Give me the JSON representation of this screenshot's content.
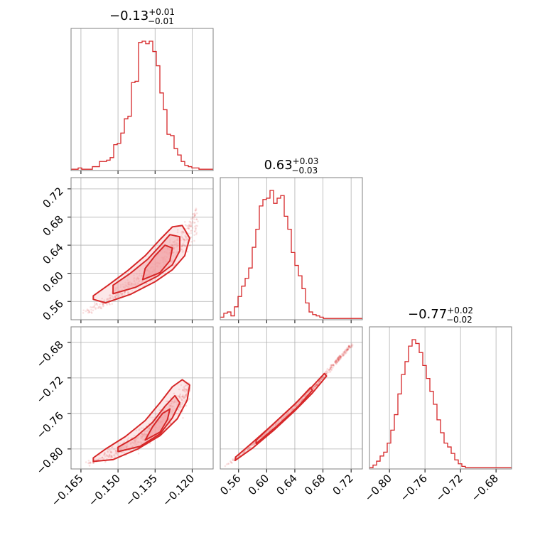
{
  "colors": {
    "series": "#d62728",
    "fill": "#f2a3a6",
    "grid": "#b0b0b0",
    "frame": "#808080"
  },
  "chart_data": {
    "type": "corner",
    "grid": true,
    "parameters": [
      {
        "median": "−0.13",
        "plus": "+0.01",
        "minus": "−0.01",
        "range": [
          -0.169,
          -0.1115
        ],
        "ticks": [
          -0.165,
          -0.15,
          -0.135,
          -0.12
        ],
        "tick_labels": [
          "−0.165",
          "−0.150",
          "−0.135",
          "−0.120"
        ]
      },
      {
        "median": "0.63",
        "plus": "+0.03",
        "minus": "−0.03",
        "range": [
          0.534,
          0.736
        ],
        "ticks": [
          0.56,
          0.6,
          0.64,
          0.68,
          0.72
        ],
        "tick_labels": [
          "0.56",
          "0.60",
          "0.64",
          "0.68",
          "0.72"
        ]
      },
      {
        "median": "−0.77",
        "plus": "+0.02",
        "minus": "−0.02",
        "range": [
          -0.8225,
          -0.6625
        ],
        "ticks": [
          -0.8,
          -0.76,
          -0.72,
          -0.68
        ],
        "tick_labels": [
          "−0.80",
          "−0.76",
          "−0.72",
          "−0.68"
        ]
      }
    ],
    "histograms": [
      {
        "param": 0,
        "counts": [
          1,
          1,
          2,
          1,
          1,
          1,
          3,
          3,
          7,
          7,
          8,
          10,
          20,
          21,
          29,
          40,
          42,
          68,
          69,
          99,
          100,
          98,
          100,
          92,
          81,
          60,
          47,
          28,
          27,
          17,
          12,
          7,
          4,
          3,
          2,
          2,
          1,
          1,
          1,
          1
        ]
      },
      {
        "param": 1,
        "counts": [
          2,
          5,
          6,
          3,
          10,
          18,
          26,
          32,
          40,
          56,
          70,
          88,
          93,
          94,
          100,
          90,
          94,
          96,
          80,
          70,
          52,
          42,
          34,
          24,
          13,
          6,
          4,
          3,
          2,
          1,
          1,
          1,
          1,
          1,
          1,
          1,
          1,
          1,
          1,
          1
        ]
      },
      {
        "param": 2,
        "counts": [
          1,
          3,
          6,
          10,
          13,
          20,
          30,
          42,
          58,
          73,
          83,
          95,
          100,
          97,
          90,
          80,
          70,
          60,
          50,
          38,
          28,
          20,
          17,
          12,
          7,
          4,
          2,
          1,
          1,
          1,
          1,
          1,
          1,
          1,
          1,
          1,
          1,
          1,
          1,
          1
        ]
      }
    ],
    "pairs": [
      {
        "x_param": 0,
        "y_param": 1,
        "trend": [
          [
            -0.164,
            0.544
          ],
          [
            -0.158,
            0.554
          ],
          [
            -0.15,
            0.57
          ],
          [
            -0.142,
            0.588
          ],
          [
            -0.135,
            0.607
          ],
          [
            -0.13,
            0.624
          ],
          [
            -0.125,
            0.643
          ],
          [
            -0.121,
            0.661
          ],
          [
            -0.118,
            0.676
          ]
        ],
        "contours": [
          [
            [
              -0.16,
              0.563
            ],
            [
              -0.155,
              0.558
            ],
            [
              -0.145,
              0.57
            ],
            [
              -0.135,
              0.588
            ],
            [
              -0.128,
              0.605
            ],
            [
              -0.123,
              0.625
            ],
            [
              -0.121,
              0.65
            ],
            [
              -0.124,
              0.668
            ],
            [
              -0.128,
              0.666
            ],
            [
              -0.133,
              0.648
            ],
            [
              -0.139,
              0.625
            ],
            [
              -0.146,
              0.604
            ],
            [
              -0.154,
              0.583
            ],
            [
              -0.16,
              0.568
            ]
          ],
          [
            [
              -0.152,
              0.571
            ],
            [
              -0.143,
              0.58
            ],
            [
              -0.134,
              0.596
            ],
            [
              -0.128,
              0.612
            ],
            [
              -0.125,
              0.632
            ],
            [
              -0.125,
              0.652
            ],
            [
              -0.129,
              0.655
            ],
            [
              -0.133,
              0.639
            ],
            [
              -0.138,
              0.62
            ],
            [
              -0.145,
              0.6
            ],
            [
              -0.152,
              0.583
            ]
          ],
          [
            [
              -0.14,
              0.591
            ],
            [
              -0.133,
              0.601
            ],
            [
              -0.129,
              0.618
            ],
            [
              -0.128,
              0.636
            ],
            [
              -0.131,
              0.64
            ],
            [
              -0.135,
              0.625
            ],
            [
              -0.139,
              0.607
            ]
          ]
        ]
      },
      {
        "x_param": 0,
        "y_param": 2,
        "trend": [
          [
            -0.163,
            -0.817
          ],
          [
            -0.155,
            -0.808
          ],
          [
            -0.147,
            -0.798
          ],
          [
            -0.14,
            -0.786
          ],
          [
            -0.134,
            -0.772
          ],
          [
            -0.129,
            -0.758
          ],
          [
            -0.124,
            -0.744
          ],
          [
            -0.121,
            -0.73
          ]
        ],
        "contours": [
          [
            [
              -0.16,
              -0.814
            ],
            [
              -0.152,
              -0.812
            ],
            [
              -0.142,
              -0.8
            ],
            [
              -0.133,
              -0.785
            ],
            [
              -0.126,
              -0.766
            ],
            [
              -0.122,
              -0.745
            ],
            [
              -0.121,
              -0.728
            ],
            [
              -0.124,
              -0.722
            ],
            [
              -0.128,
              -0.73
            ],
            [
              -0.133,
              -0.748
            ],
            [
              -0.139,
              -0.768
            ],
            [
              -0.147,
              -0.786
            ],
            [
              -0.155,
              -0.8
            ],
            [
              -0.16,
              -0.81
            ]
          ],
          [
            [
              -0.15,
              -0.803
            ],
            [
              -0.141,
              -0.797
            ],
            [
              -0.133,
              -0.783
            ],
            [
              -0.128,
              -0.765
            ],
            [
              -0.125,
              -0.748
            ],
            [
              -0.127,
              -0.74
            ],
            [
              -0.131,
              -0.752
            ],
            [
              -0.136,
              -0.77
            ],
            [
              -0.143,
              -0.787
            ],
            [
              -0.15,
              -0.798
            ]
          ],
          [
            [
              -0.139,
              -0.79
            ],
            [
              -0.133,
              -0.781
            ],
            [
              -0.13,
              -0.767
            ],
            [
              -0.129,
              -0.755
            ],
            [
              -0.132,
              -0.76
            ],
            [
              -0.136,
              -0.775
            ]
          ]
        ]
      },
      {
        "x_param": 1,
        "y_param": 2,
        "trend": [
          [
            0.54,
            -0.82
          ],
          [
            0.56,
            -0.808
          ],
          [
            0.58,
            -0.795
          ],
          [
            0.6,
            -0.782
          ],
          [
            0.62,
            -0.768
          ],
          [
            0.64,
            -0.753
          ],
          [
            0.66,
            -0.737
          ],
          [
            0.68,
            -0.719
          ],
          [
            0.7,
            -0.701
          ],
          [
            0.72,
            -0.683
          ]
        ],
        "contours": [
          [
            [
              0.555,
              -0.813
            ],
            [
              0.58,
              -0.799
            ],
            [
              0.61,
              -0.779
            ],
            [
              0.64,
              -0.757
            ],
            [
              0.665,
              -0.737
            ],
            [
              0.685,
              -0.718
            ],
            [
              0.682,
              -0.715
            ],
            [
              0.662,
              -0.732
            ],
            [
              0.638,
              -0.751
            ],
            [
              0.608,
              -0.773
            ],
            [
              0.578,
              -0.794
            ],
            [
              0.556,
              -0.809
            ]
          ],
          [
            [
              0.585,
              -0.794
            ],
            [
              0.615,
              -0.774
            ],
            [
              0.645,
              -0.752
            ],
            [
              0.665,
              -0.734
            ],
            [
              0.662,
              -0.731
            ],
            [
              0.642,
              -0.748
            ],
            [
              0.612,
              -0.77
            ],
            [
              0.585,
              -0.79
            ]
          ]
        ]
      }
    ]
  }
}
